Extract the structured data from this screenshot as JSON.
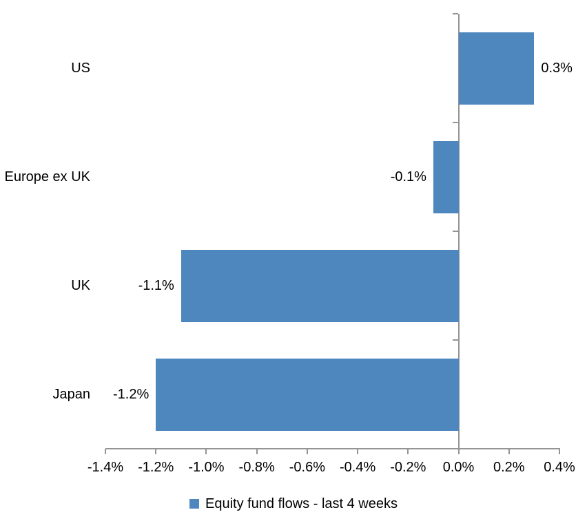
{
  "chart_data": {
    "type": "bar",
    "orientation": "horizontal",
    "title": "",
    "categories": [
      "US",
      "Europe ex UK",
      "UK",
      "Japan"
    ],
    "series": [
      {
        "name": "Equity fund flows - last 4 weeks",
        "values": [
          0.3,
          -0.1,
          -1.1,
          -1.2
        ],
        "data_labels": [
          "0.3%",
          "-0.1%",
          "-1.1%",
          "-1.2%"
        ]
      }
    ],
    "xlim": [
      -1.4,
      0.4
    ],
    "x_ticks": [
      {
        "value": -1.4,
        "label": "-1.4%"
      },
      {
        "value": -1.2,
        "label": "-1.2%"
      },
      {
        "value": -1.0,
        "label": "-1.0%"
      },
      {
        "value": -0.8,
        "label": "-0.8%"
      },
      {
        "value": -0.6,
        "label": "-0.6%"
      },
      {
        "value": -0.4,
        "label": "-0.4%"
      },
      {
        "value": -0.2,
        "label": "-0.2%"
      },
      {
        "value": 0.0,
        "label": "0.0%"
      },
      {
        "value": 0.2,
        "label": "0.2%"
      },
      {
        "value": 0.4,
        "label": "0.4%"
      }
    ],
    "grid": false,
    "legend_position": "bottom",
    "legend_label": "Equity fund flows - last 4 weeks",
    "colors": {
      "bar": "#4E87BE",
      "axis": "#949494",
      "text": "#000000",
      "background": "#FFFFFF"
    }
  }
}
